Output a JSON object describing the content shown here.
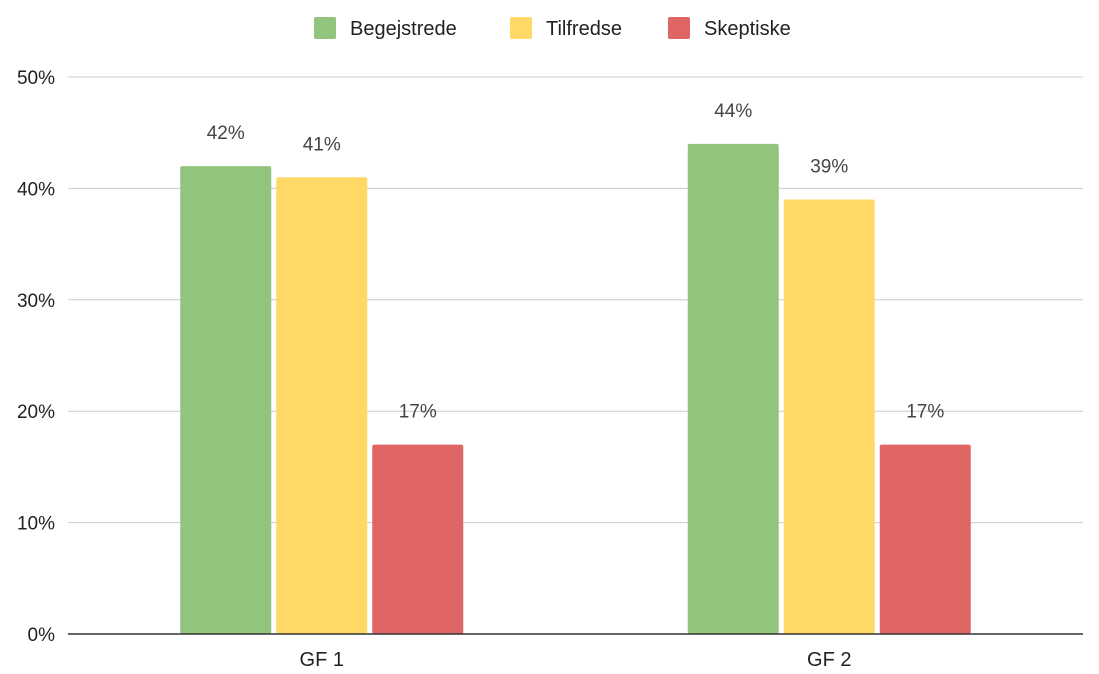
{
  "chart_data": {
    "type": "bar",
    "title": "",
    "xlabel": "",
    "ylabel": "",
    "categories": [
      "GF 1",
      "GF 2"
    ],
    "series": [
      {
        "name": "Begejstrede",
        "values": [
          42,
          44
        ],
        "color": "#93c47d"
      },
      {
        "name": "Tilfredse",
        "values": [
          41,
          39
        ],
        "color": "#ffd966"
      },
      {
        "name": "Skeptiske",
        "values": [
          17,
          17
        ],
        "color": "#e06666"
      }
    ],
    "data_labels": [
      [
        "42%",
        "44%"
      ],
      [
        "41%",
        "39%"
      ],
      [
        "17%",
        "17%"
      ]
    ],
    "ylim": [
      0,
      50
    ],
    "yticks": [
      0,
      10,
      20,
      30,
      40,
      50
    ],
    "ytick_labels": [
      "0%",
      "10%",
      "20%",
      "30%",
      "40%",
      "50%"
    ],
    "grid": true,
    "legend_position": "top-center"
  }
}
